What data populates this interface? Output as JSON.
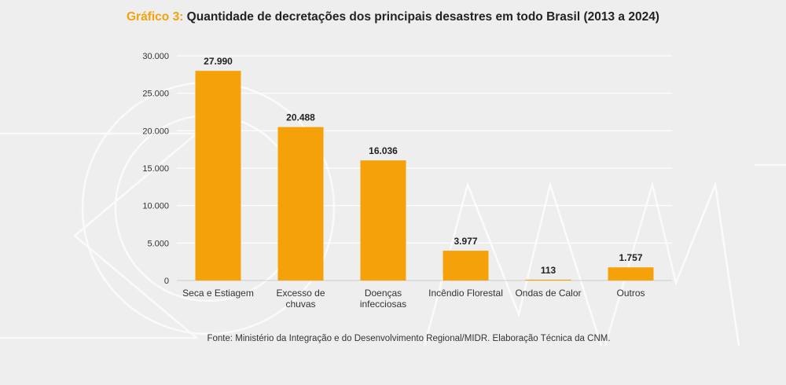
{
  "title": {
    "prefix": "Gráfico 3:",
    "text": "Quantidade de decretações dos principais desastres em todo Brasil (2013 a 2024)"
  },
  "source": "Fonte: Ministério da Integração e do Desenvolvimento Regional/MIDR. Elaboração Técnica da CNM.",
  "colors": {
    "bar": "#f5a20a",
    "accent": "#f5a20a",
    "grid": "#ffffff",
    "watermark": "#ffffff"
  },
  "chart_data": {
    "type": "bar",
    "title": "Quantidade de decretações dos principais desastres em todo Brasil (2013 a 2024)",
    "categories": [
      [
        "Seca e Estiagem"
      ],
      [
        "Excesso de",
        "chuvas"
      ],
      [
        "Doenças",
        "infecciosas"
      ],
      [
        "Incêndio Florestal"
      ],
      [
        "Ondas de Calor"
      ],
      [
        "Outros"
      ]
    ],
    "values": [
      27990,
      20488,
      16036,
      3977,
      113,
      1757
    ],
    "value_labels": [
      "27.990",
      "20.488",
      "16.036",
      "3.977",
      "113",
      "1.757"
    ],
    "yticks": [
      0,
      5000,
      10000,
      15000,
      20000,
      25000,
      30000
    ],
    "ytick_labels": [
      "0",
      "5.000",
      "10.000",
      "15.000",
      "20.000",
      "25.000",
      "30.000"
    ],
    "ylim": [
      0,
      30000
    ],
    "xlabel": "",
    "ylabel": "",
    "grid": true,
    "legend": "none"
  }
}
